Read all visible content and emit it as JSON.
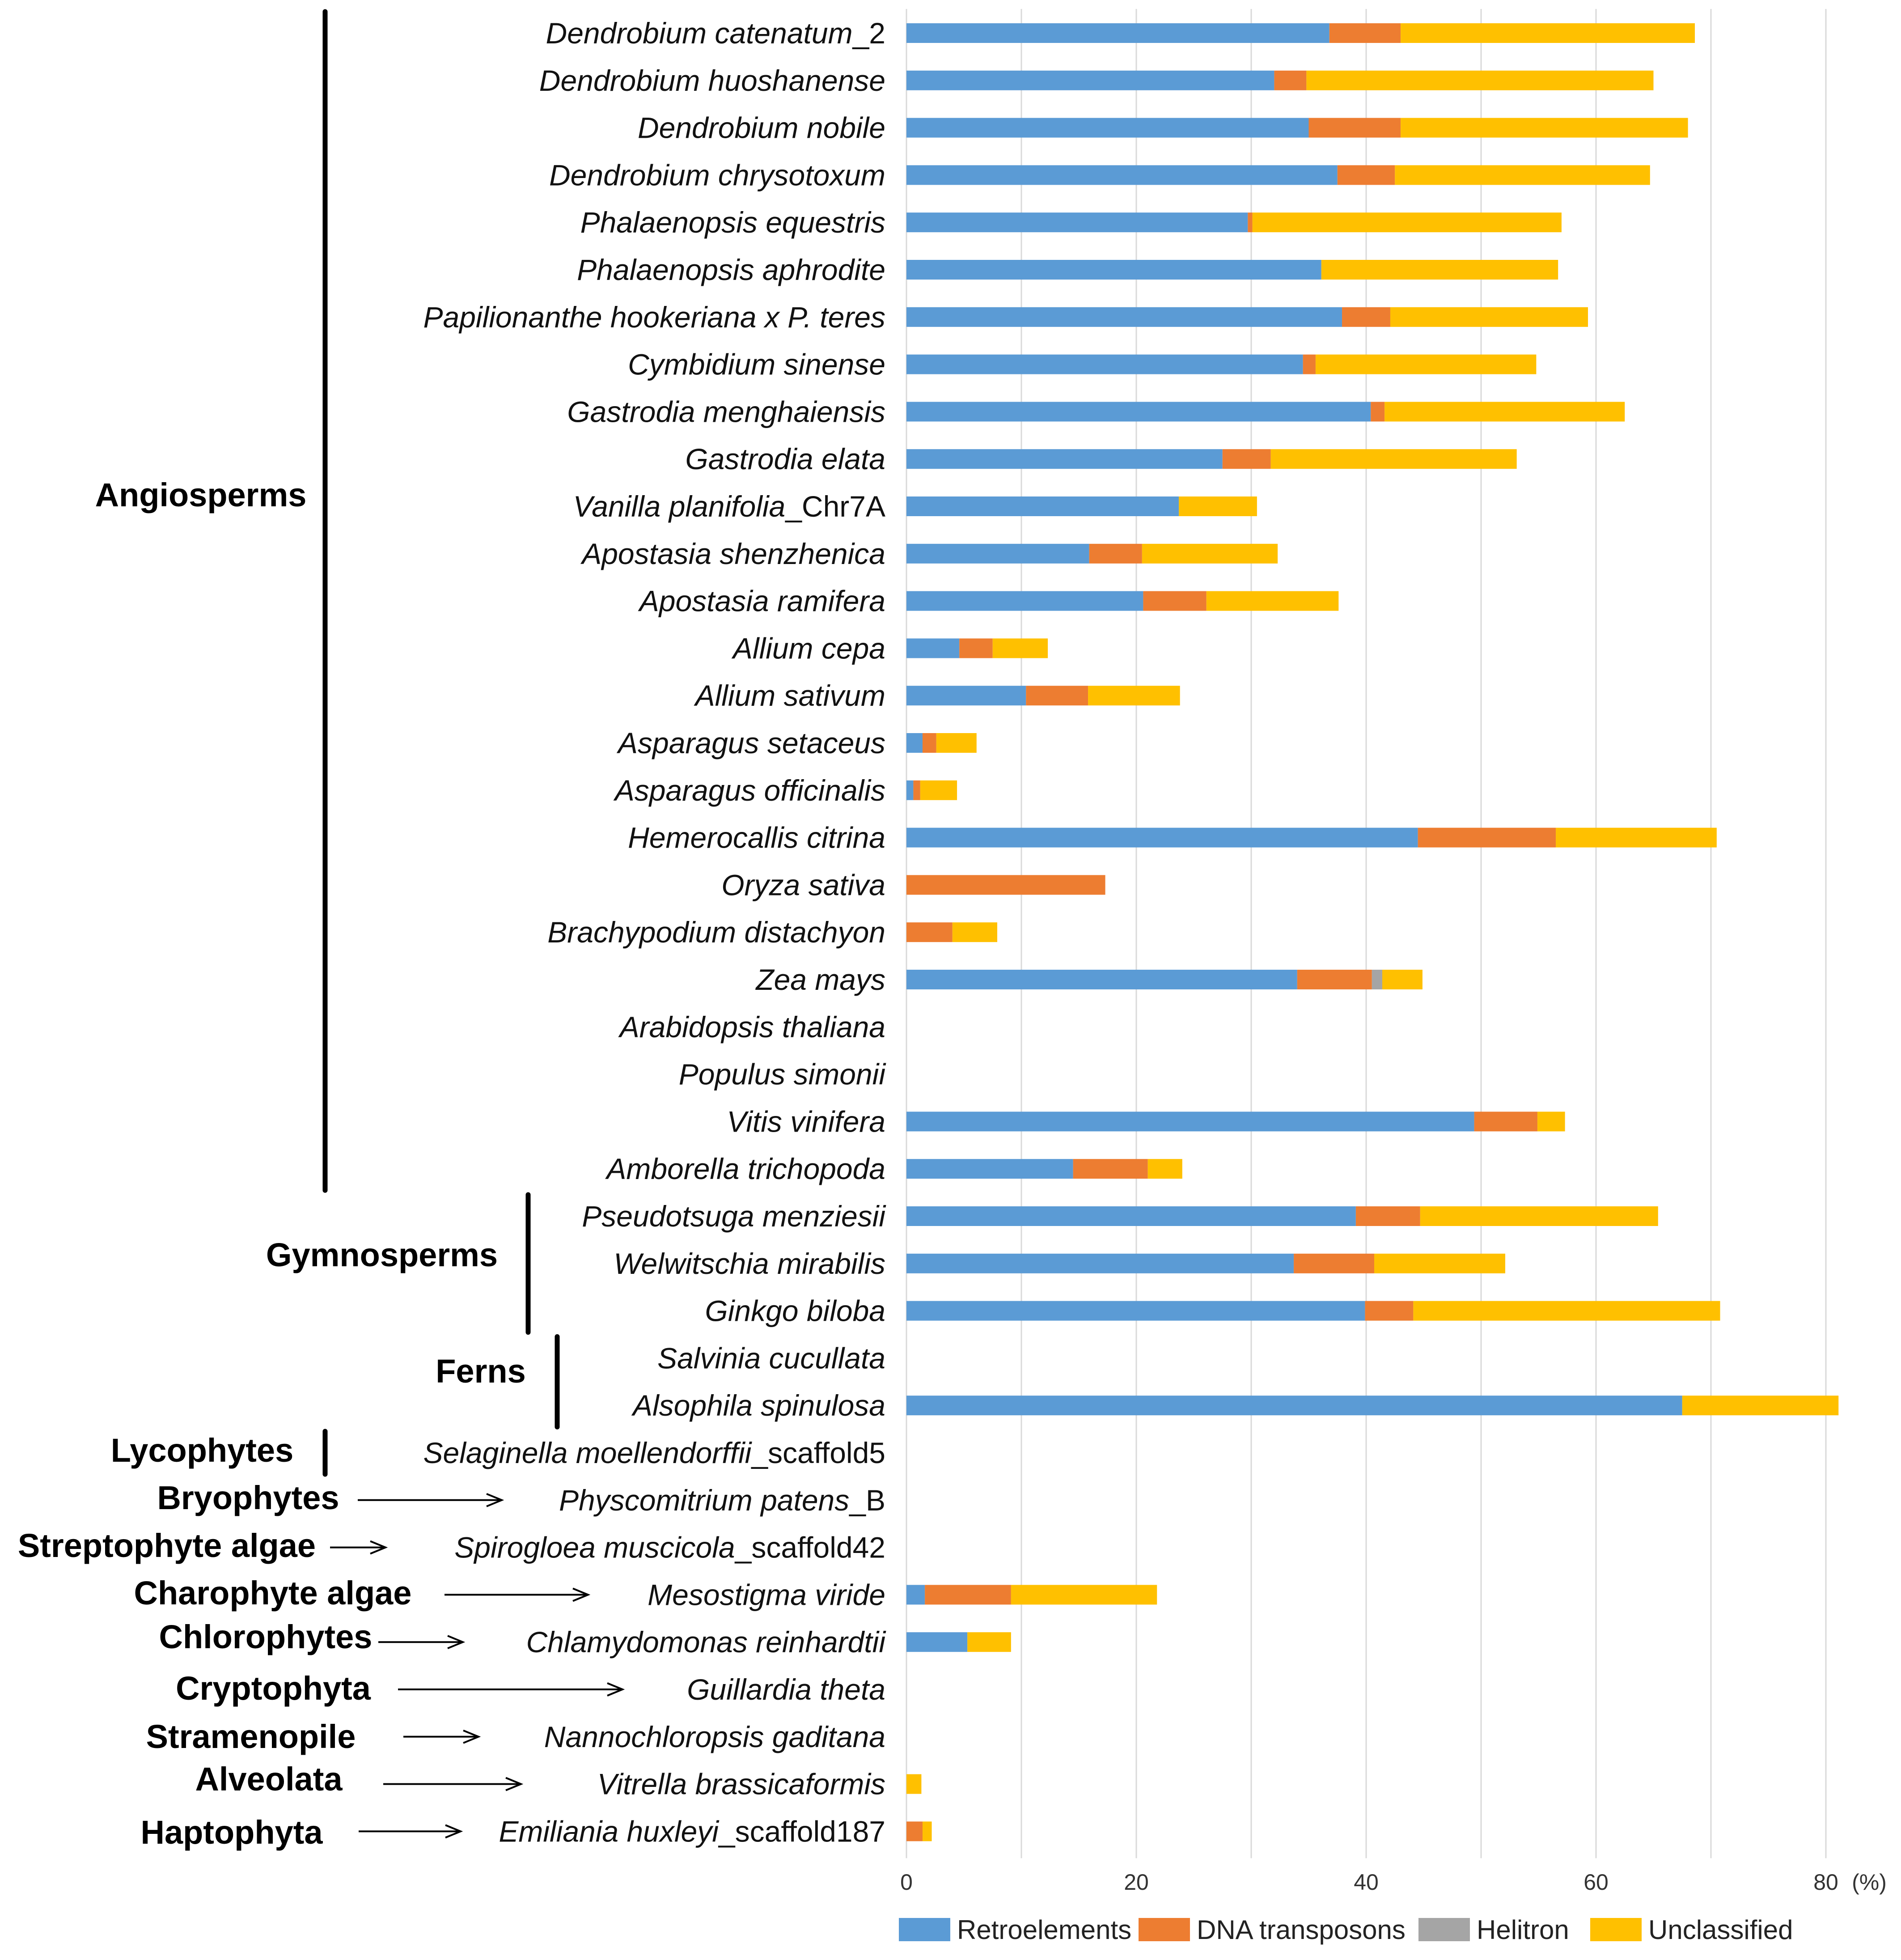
{
  "chart_data": {
    "type": "bar",
    "orientation": "horizontal",
    "stacked": true,
    "unit": "(%)",
    "xlim": [
      0,
      80
    ],
    "xticks": [
      "0",
      "20",
      "40",
      "60",
      "80"
    ],
    "grid": true,
    "legend_position": "bottom",
    "series": [
      {
        "name": "Retroelements",
        "color": "#5b9bd5"
      },
      {
        "name": "DNA transposons",
        "color": "#ed7d31"
      },
      {
        "name": "Helitron",
        "color": "#a5a5a5"
      },
      {
        "name": "Unclassified",
        "color": "#ffc000"
      }
    ],
    "rows": [
      {
        "name": "Dendrobium catenatum",
        "suffix": "_2",
        "values": [
          36.8,
          6.2,
          0,
          25.6
        ]
      },
      {
        "name": "Dendrobium huoshanense",
        "suffix": "",
        "values": [
          32.0,
          2.8,
          0,
          30.2
        ]
      },
      {
        "name": "Dendrobium nobile",
        "suffix": "",
        "values": [
          35.0,
          8.0,
          0,
          25.0
        ]
      },
      {
        "name": "Dendrobium chrysotoxum",
        "suffix": "",
        "values": [
          37.5,
          5.0,
          0,
          22.2
        ]
      },
      {
        "name": "Phalaenopsis equestris",
        "suffix": "",
        "values": [
          29.7,
          0.4,
          0,
          26.9
        ]
      },
      {
        "name": "Phalaenopsis aphrodite",
        "suffix": "",
        "values": [
          36.1,
          0,
          0,
          20.6
        ]
      },
      {
        "name": "Papilionanthe hookeriana x P. teres",
        "suffix": "",
        "values": [
          37.9,
          4.2,
          0,
          17.2
        ]
      },
      {
        "name": "Cymbidium sinense",
        "suffix": "",
        "values": [
          34.5,
          1.1,
          0,
          19.2
        ]
      },
      {
        "name": "Gastrodia menghaiensis",
        "suffix": "",
        "values": [
          40.4,
          1.2,
          0,
          20.9
        ]
      },
      {
        "name": "Gastrodia elata",
        "suffix": "",
        "values": [
          27.5,
          4.2,
          0,
          21.4
        ]
      },
      {
        "name": "Vanilla planifolia",
        "suffix": "_Chr7A",
        "values": [
          23.7,
          0,
          0,
          6.8
        ]
      },
      {
        "name": "Apostasia shenzhenica",
        "suffix": "",
        "values": [
          15.9,
          4.6,
          0,
          11.8
        ]
      },
      {
        "name": "Apostasia ramifera",
        "suffix": "",
        "values": [
          20.6,
          5.5,
          0,
          11.5
        ]
      },
      {
        "name": "Allium cepa",
        "suffix": "",
        "values": [
          4.6,
          2.9,
          0,
          4.8
        ]
      },
      {
        "name": "Allium sativum",
        "suffix": "",
        "values": [
          10.4,
          5.4,
          0,
          8.0
        ]
      },
      {
        "name": "Asparagus setaceus",
        "suffix": "",
        "values": [
          1.4,
          1.2,
          0,
          3.5
        ]
      },
      {
        "name": "Asparagus officinalis",
        "suffix": "",
        "values": [
          0.6,
          0.6,
          0,
          3.2
        ]
      },
      {
        "name": "Hemerocallis citrina",
        "suffix": "",
        "values": [
          44.5,
          12.0,
          0,
          14.0
        ]
      },
      {
        "name": "Oryza sativa",
        "suffix": "",
        "values": [
          0,
          17.3,
          0,
          0
        ]
      },
      {
        "name": "Brachypodium distachyon",
        "suffix": "",
        "values": [
          0,
          4.0,
          0,
          3.9
        ]
      },
      {
        "name": "Zea mays",
        "suffix": "",
        "values": [
          34.0,
          6.5,
          0.9,
          3.5
        ]
      },
      {
        "name": "Arabidopsis thaliana",
        "suffix": "",
        "values": [
          0,
          0,
          0,
          0
        ]
      },
      {
        "name": "Populus simonii",
        "suffix": "",
        "values": [
          0,
          0,
          0,
          0
        ]
      },
      {
        "name": "Vitis vinifera",
        "suffix": "",
        "values": [
          49.4,
          5.5,
          0,
          2.4
        ]
      },
      {
        "name": "Amborella trichopoda",
        "suffix": "",
        "values": [
          14.5,
          6.5,
          0,
          3.0
        ]
      },
      {
        "name": "Pseudotsuga menziesii",
        "suffix": "",
        "values": [
          39.1,
          5.6,
          0,
          20.7
        ]
      },
      {
        "name": "Welwitschia mirabilis",
        "suffix": "",
        "values": [
          33.7,
          7.0,
          0,
          11.4
        ]
      },
      {
        "name": "Ginkgo biloba",
        "suffix": "",
        "values": [
          39.9,
          4.2,
          0,
          26.7
        ]
      },
      {
        "name": "Salvinia cucullata",
        "suffix": "",
        "values": [
          0,
          0,
          0,
          0
        ]
      },
      {
        "name": "Alsophila spinulosa",
        "suffix": "",
        "values": [
          67.5,
          0,
          0,
          13.6
        ]
      },
      {
        "name": "Selaginella moellendorffii",
        "suffix": "_scaffold5",
        "values": [
          0,
          0,
          0,
          0
        ]
      },
      {
        "name": "Physcomitrium patens",
        "suffix": "_B",
        "values": [
          0,
          0,
          0,
          0
        ]
      },
      {
        "name": "Spirogloea muscicola",
        "suffix": "_scaffold42",
        "values": [
          0,
          0,
          0,
          0
        ]
      },
      {
        "name": "Mesostigma viride",
        "suffix": "",
        "values": [
          1.6,
          7.5,
          0,
          12.7
        ]
      },
      {
        "name": "Chlamydomonas reinhardtii",
        "suffix": "",
        "values": [
          5.3,
          0,
          0,
          3.8
        ]
      },
      {
        "name": "Guillardia theta",
        "suffix": "",
        "values": [
          0,
          0,
          0,
          0
        ]
      },
      {
        "name": "Nannochloropsis gaditana",
        "suffix": "",
        "values": [
          0,
          0,
          0,
          0
        ]
      },
      {
        "name": "Vitrella brassicaformis",
        "suffix": "",
        "values": [
          0,
          0,
          0,
          1.3
        ]
      },
      {
        "name": "Emiliania huxleyi",
        "suffix": "_scaffold187",
        "values": [
          0,
          1.4,
          0,
          0.8
        ]
      }
    ],
    "groups": [
      {
        "label": "Angiosperms",
        "marker": "bracket",
        "first_row": 0,
        "last_row": 24
      },
      {
        "label": "Gymnosperms",
        "marker": "bracket",
        "first_row": 25,
        "last_row": 27
      },
      {
        "label": "Ferns",
        "marker": "bracket",
        "first_row": 28,
        "last_row": 29
      },
      {
        "label": "Lycophytes",
        "marker": "bracket",
        "first_row": 30,
        "last_row": 30
      },
      {
        "label": "Bryophytes",
        "marker": "arrow",
        "first_row": 31,
        "last_row": 31
      },
      {
        "label": "Streptophyte algae",
        "marker": "arrow",
        "first_row": 32,
        "last_row": 32
      },
      {
        "label": "Charophyte algae",
        "marker": "arrow",
        "first_row": 33,
        "last_row": 33
      },
      {
        "label": "Chlorophytes",
        "marker": "arrow",
        "first_row": 34,
        "last_row": 34
      },
      {
        "label": "Cryptophyta",
        "marker": "arrow",
        "first_row": 35,
        "last_row": 35
      },
      {
        "label": "Stramenopile",
        "marker": "arrow",
        "first_row": 36,
        "last_row": 36
      },
      {
        "label": "Alveolata",
        "marker": "arrow",
        "first_row": 37,
        "last_row": 37
      },
      {
        "label": "Haptophyta",
        "marker": "arrow",
        "first_row": 38,
        "last_row": 38
      }
    ]
  }
}
